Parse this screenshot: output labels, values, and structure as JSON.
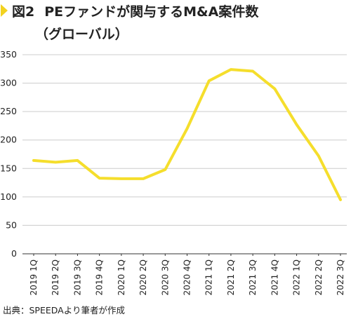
{
  "title": {
    "number": "図2",
    "main": "PEファンドが関与するM&A案件数",
    "sub": "（グローバル）"
  },
  "source": "出典：SPEEDAより筆者が作成",
  "colors": {
    "line": "#f5de2c",
    "marker": "#f2d21f",
    "grid": "#cccccc",
    "axis": "#333333"
  },
  "chart_data": {
    "type": "line",
    "categories": [
      "2019 1Q",
      "2019 2Q",
      "2019 3Q",
      "2019 4Q",
      "2020 1Q",
      "2020 2Q",
      "2020 3Q",
      "2020 4Q",
      "2021 1Q",
      "2021 2Q",
      "2021 3Q",
      "2021 4Q",
      "2022 1Q",
      "2022 2Q",
      "2022 3Q"
    ],
    "series": [
      {
        "values": [
          164,
          161,
          164,
          133,
          132,
          132,
          148,
          220,
          304,
          324,
          321,
          290,
          227,
          172,
          95
        ]
      }
    ],
    "yticks": [
      0,
      50,
      100,
      150,
      200,
      250,
      300,
      350
    ],
    "ylim": [
      0,
      350
    ],
    "grid": true
  }
}
